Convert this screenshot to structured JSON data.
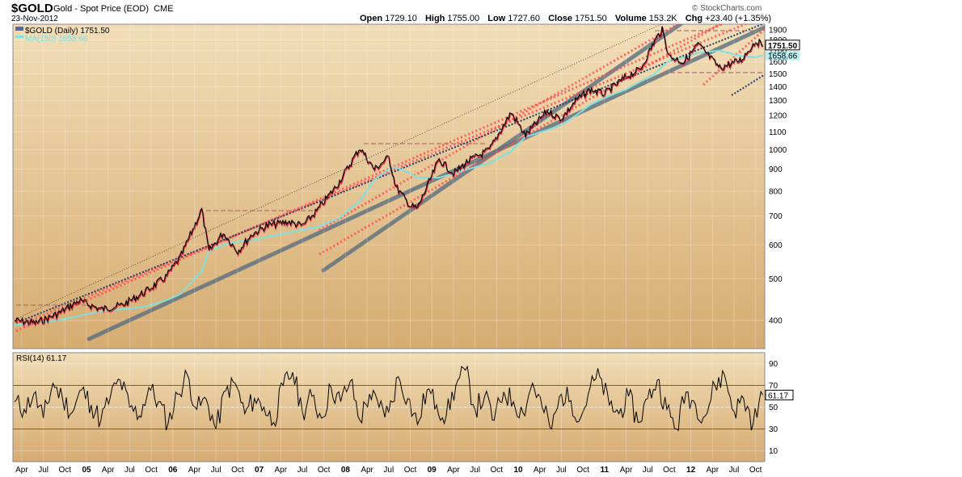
{
  "header": {
    "ticker": "$GOLD",
    "description": "Gold - Spot Price (EOD)",
    "exchange": "CME",
    "date": "23-Nov-2012",
    "brand": "© StockCharts.com",
    "open_label": "Open",
    "open": "1729.10",
    "high_label": "High",
    "high": "1755.00",
    "low_label": "Low",
    "low": "1727.60",
    "close_label": "Close",
    "close": "1751.50",
    "volume_label": "Volume",
    "volume": "153.2K",
    "chg_label": "Chg",
    "chg": "+23.40 (+1.35%)"
  },
  "colors": {
    "background_top": "#f1ddb6",
    "background_bottom": "#d6ac72",
    "price": "#000000",
    "price_down": "#c8102e",
    "ma": "#7fe0e0",
    "channel": "#5a6f80",
    "red_dotted": "#ff4b4b",
    "blue_dotted": "#1f3a6e"
  },
  "chart_data": [
    {
      "type": "line",
      "legend": [
        "$GOLD (Daily) 1751.50",
        "MA(150) 1658.66"
      ],
      "y_scale": "log",
      "ylim": [
        360,
        1950
      ],
      "y_ticks": [
        400,
        500,
        600,
        700,
        800,
        900,
        1000,
        1100,
        1200,
        1300,
        1400,
        1500,
        1600,
        1700,
        1800,
        1900
      ],
      "x_ticks": [
        "Apr",
        "Jul",
        "Oct",
        "05",
        "Apr",
        "Jul",
        "Oct",
        "06",
        "Apr",
        "Jul",
        "Oct",
        "07",
        "Apr",
        "Jul",
        "Oct",
        "08",
        "Apr",
        "Jul",
        "Oct",
        "09",
        "Apr",
        "Jul",
        "Oct",
        "10",
        "Apr",
        "Jul",
        "Oct",
        "11",
        "Apr",
        "Jul",
        "Oct",
        "12",
        "Apr",
        "Jul",
        "Oct"
      ],
      "x": [
        "2004-03",
        "2004-06",
        "2004-09",
        "2004-12",
        "2005-03",
        "2005-06",
        "2005-09",
        "2005-12",
        "2006-02",
        "2006-05",
        "2006-06",
        "2006-08",
        "2006-10",
        "2006-12",
        "2007-02",
        "2007-05",
        "2007-07",
        "2007-09",
        "2007-12",
        "2008-03",
        "2008-05",
        "2008-07",
        "2008-08",
        "2008-10",
        "2008-11",
        "2009-02",
        "2009-04",
        "2009-06",
        "2009-09",
        "2009-12",
        "2010-02",
        "2010-05",
        "2010-07",
        "2010-09",
        "2010-11",
        "2011-01",
        "2011-04",
        "2011-06",
        "2011-08",
        "2011-09",
        "2011-10",
        "2011-12",
        "2012-02",
        "2012-05",
        "2012-08",
        "2012-10",
        "2012-11"
      ],
      "series": [
        {
          "name": "$GOLD (Daily)",
          "values": [
            400,
            395,
            415,
            445,
            425,
            435,
            465,
            505,
            560,
            725,
            580,
            640,
            580,
            635,
            665,
            680,
            665,
            720,
            835,
            1010,
            900,
            960,
            820,
            740,
            730,
            950,
            880,
            940,
            1000,
            1220,
            1080,
            1230,
            1180,
            1300,
            1380,
            1350,
            1480,
            1540,
            1800,
            1900,
            1650,
            1600,
            1760,
            1550,
            1620,
            1790,
            1751.5
          ]
        },
        {
          "name": "MA(150)",
          "values": [
            390,
            395,
            400,
            410,
            420,
            425,
            430,
            445,
            460,
            520,
            580,
            600,
            610,
            615,
            625,
            640,
            650,
            660,
            690,
            760,
            850,
            900,
            910,
            880,
            860,
            860,
            880,
            900,
            930,
            990,
            1070,
            1110,
            1140,
            1200,
            1270,
            1320,
            1380,
            1440,
            1500,
            1560,
            1610,
            1640,
            1680,
            1700,
            1650,
            1640,
            1658.66
          ]
        }
      ],
      "annotations": {
        "last_price": "1751.50",
        "ma_value": "1658.66"
      }
    },
    {
      "type": "line",
      "legend": [
        "RSI(14) 61.17"
      ],
      "ylim": [
        0,
        100
      ],
      "y_ticks": [
        10,
        30,
        50,
        70,
        90
      ],
      "reference_lines": [
        30,
        70
      ],
      "x_ticks": [
        "Apr",
        "Jul",
        "Oct",
        "05",
        "Apr",
        "Jul",
        "Oct",
        "06",
        "Apr",
        "Jul",
        "Oct",
        "07",
        "Apr",
        "Jul",
        "Oct",
        "08",
        "Apr",
        "Jul",
        "Oct",
        "09",
        "Apr",
        "Jul",
        "Oct",
        "10",
        "Apr",
        "Jul",
        "Oct",
        "11",
        "Apr",
        "Jul",
        "Oct",
        "12",
        "Apr",
        "Jul",
        "Oct"
      ],
      "series": [
        {
          "name": "RSI(14)",
          "values": [
            55,
            48,
            62,
            40,
            72,
            58,
            45,
            66,
            52,
            38,
            60,
            75,
            50,
            42,
            68,
            55,
            35,
            62,
            80,
            48,
            57,
            30,
            65,
            72,
            44,
            58,
            50,
            36,
            70,
            82,
            46,
            60,
            40,
            68,
            55,
            74,
            38,
            62,
            50,
            45,
            78,
            58,
            34,
            66,
            52,
            42,
            70,
            84,
            48,
            60,
            38,
            64,
            55,
            45,
            72,
            50,
            30,
            62,
            56,
            40,
            68,
            78,
            52,
            44,
            60,
            36,
            58,
            75,
            48,
            30,
            64,
            52,
            42,
            70,
            80,
            46,
            58,
            35,
            61.17
          ]
        }
      ],
      "annotations": {
        "last_value": "61.17"
      }
    }
  ]
}
